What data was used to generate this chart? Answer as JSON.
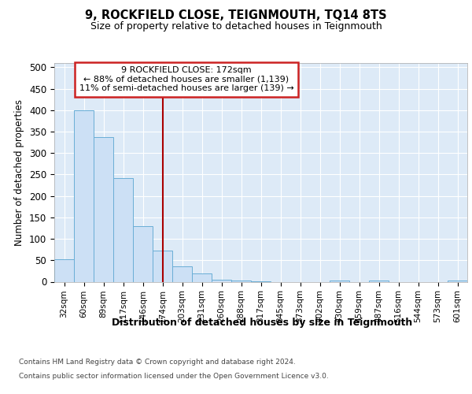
{
  "title": "9, ROCKFIELD CLOSE, TEIGNMOUTH, TQ14 8TS",
  "subtitle": "Size of property relative to detached houses in Teignmouth",
  "xlabel": "Distribution of detached houses by size in Teignmouth",
  "ylabel": "Number of detached properties",
  "bar_labels": [
    "32sqm",
    "60sqm",
    "89sqm",
    "117sqm",
    "146sqm",
    "174sqm",
    "203sqm",
    "231sqm",
    "260sqm",
    "288sqm",
    "317sqm",
    "345sqm",
    "373sqm",
    "402sqm",
    "430sqm",
    "459sqm",
    "487sqm",
    "516sqm",
    "544sqm",
    "573sqm",
    "601sqm"
  ],
  "bar_values": [
    52,
    399,
    337,
    242,
    129,
    72,
    35,
    19,
    5,
    3,
    1,
    0,
    0,
    0,
    2,
    0,
    2,
    0,
    0,
    0,
    2
  ],
  "bar_color": "#cce0f5",
  "bar_edge_color": "#6aaed6",
  "vline_index": 5,
  "vline_color": "#aa0000",
  "annotation_text": "9 ROCKFIELD CLOSE: 172sqm\n← 88% of detached houses are smaller (1,139)\n11% of semi-detached houses are larger (139) →",
  "ann_box_facecolor": "#ffffff",
  "ann_box_edgecolor": "#cc2222",
  "ylim": [
    0,
    510
  ],
  "yticks": [
    0,
    50,
    100,
    150,
    200,
    250,
    300,
    350,
    400,
    450,
    500
  ],
  "grid_color": "#ffffff",
  "plot_bg": "#ddeaf7",
  "footer_line1": "Contains HM Land Registry data © Crown copyright and database right 2024.",
  "footer_line2": "Contains public sector information licensed under the Open Government Licence v3.0."
}
